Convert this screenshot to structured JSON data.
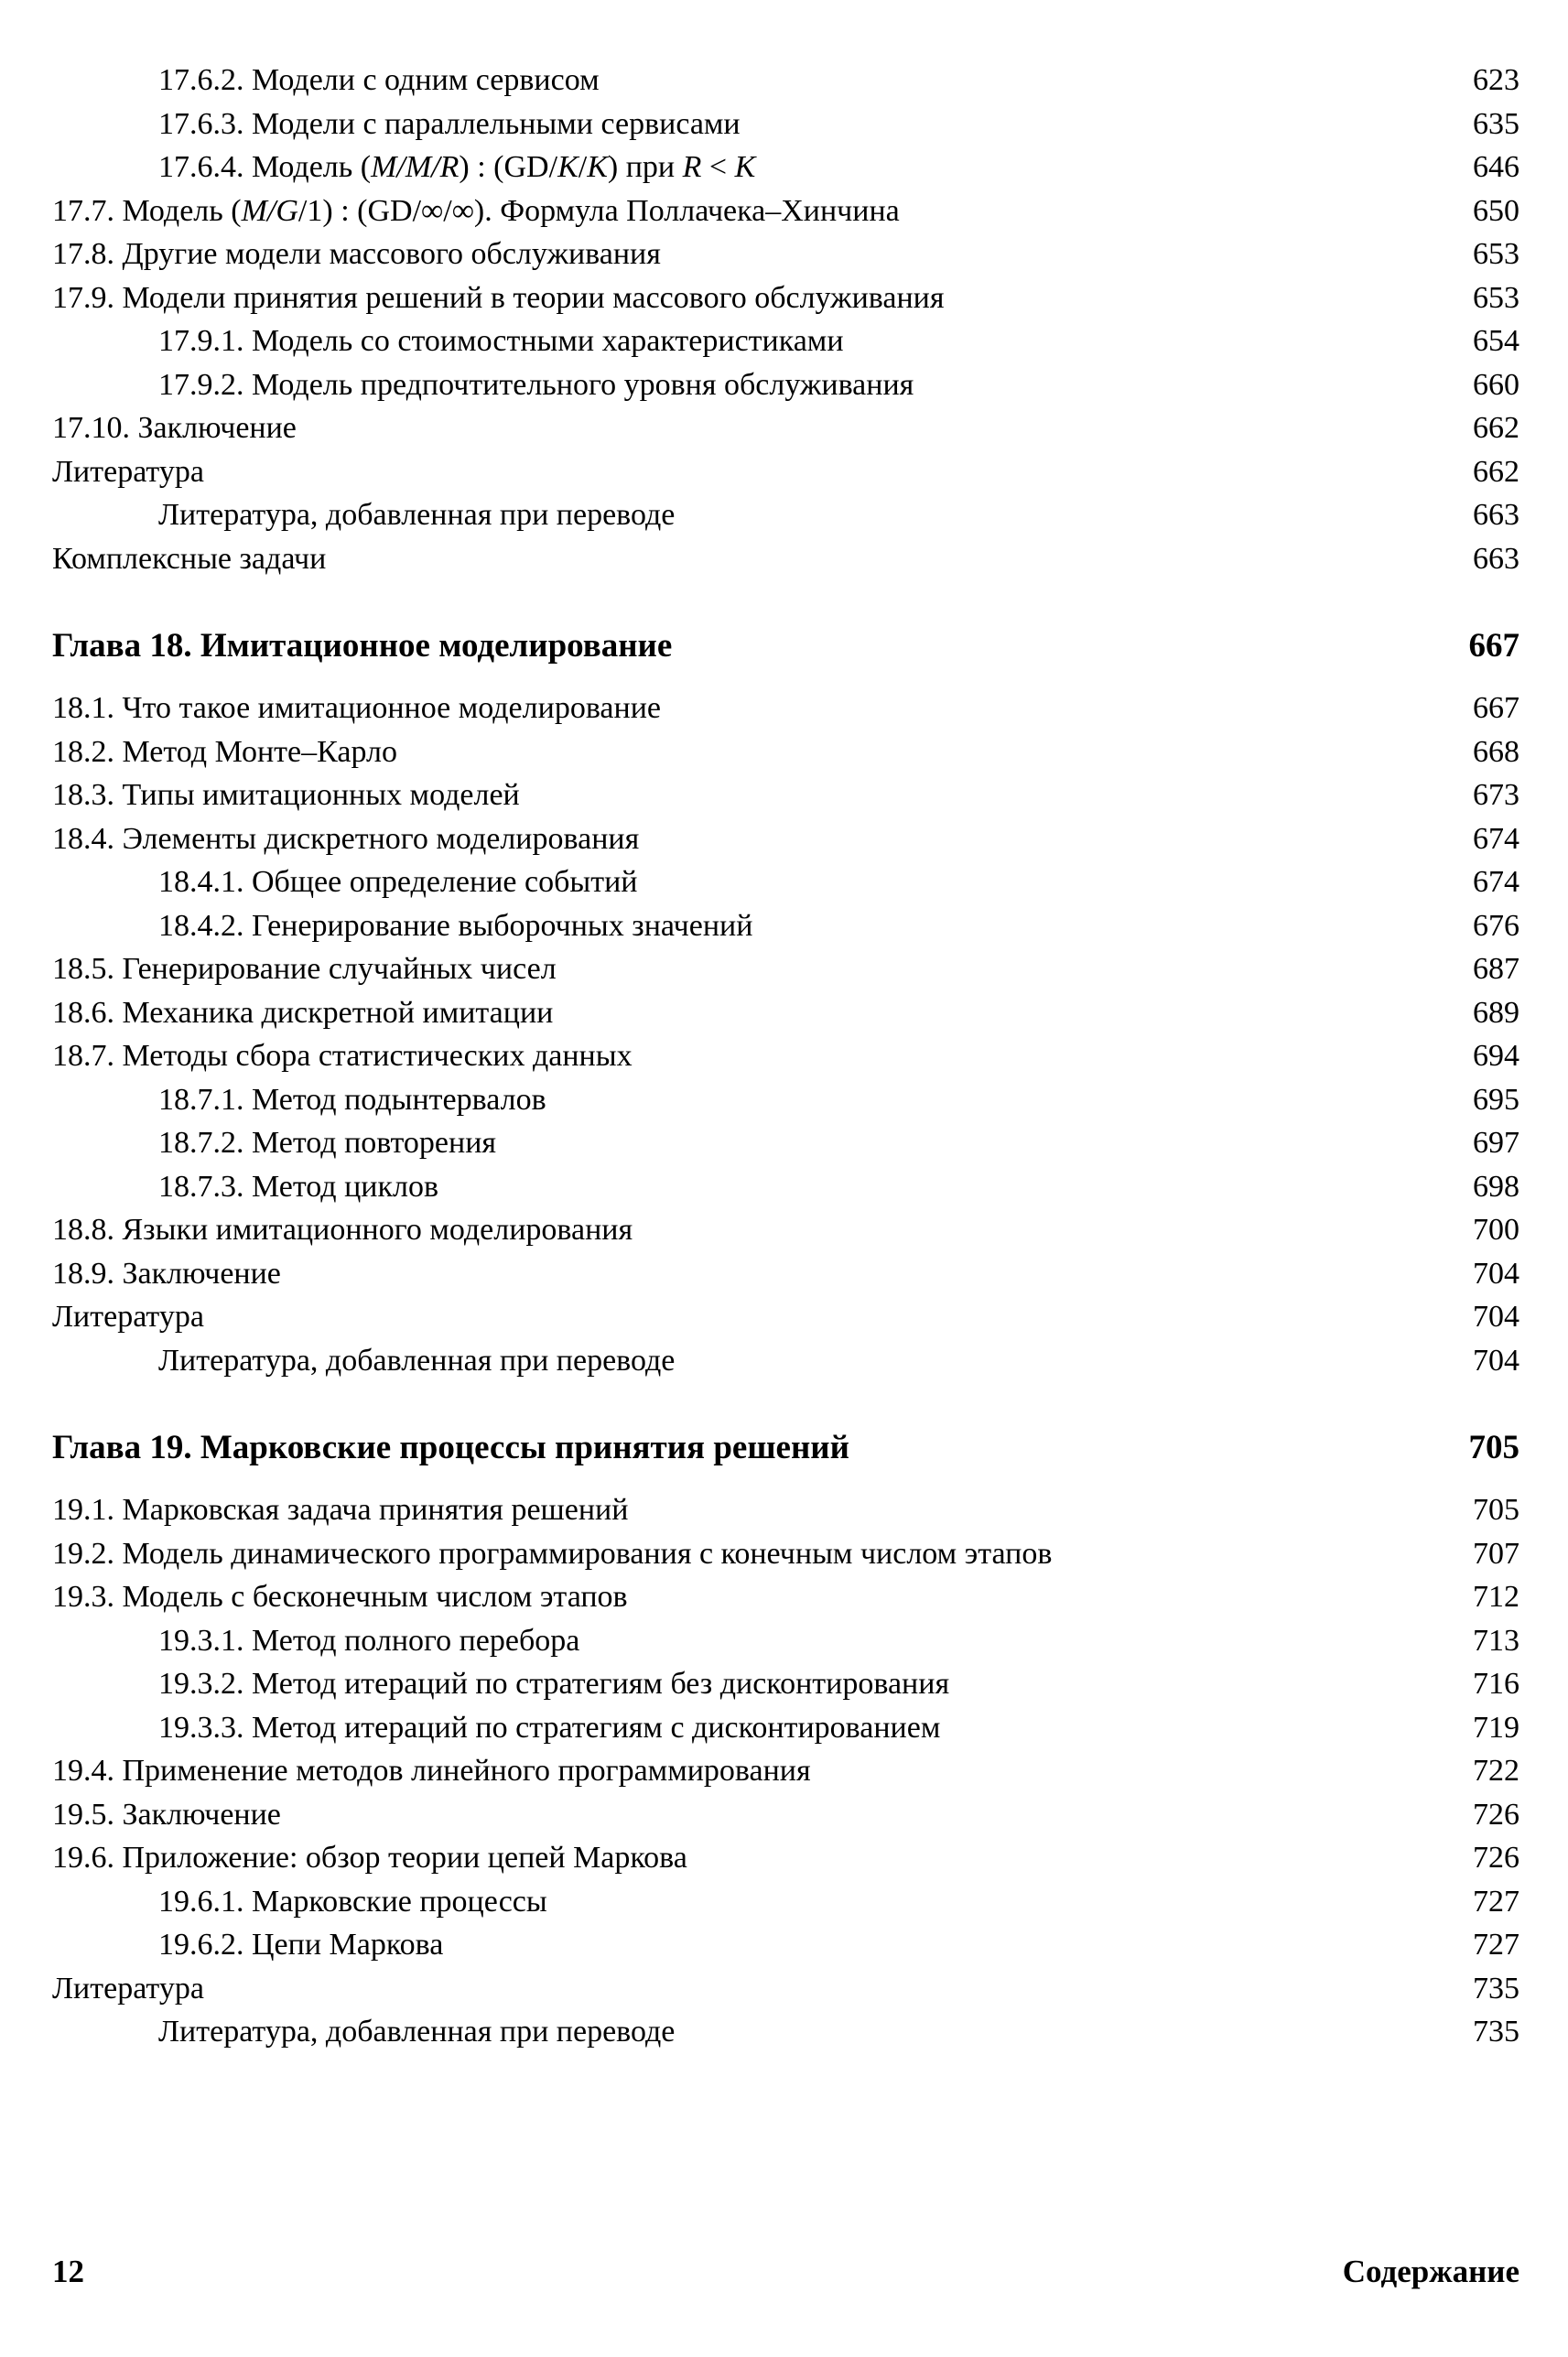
{
  "toc": {
    "entries": [
      {
        "level": 1,
        "runs": [
          {
            "t": "17.6.2. Модели с одним сервисом"
          }
        ],
        "page": "623"
      },
      {
        "level": 1,
        "runs": [
          {
            "t": "17.6.3. Модели с параллельными сервисами"
          }
        ],
        "page": "635"
      },
      {
        "level": 1,
        "runs": [
          {
            "t": "17.6.4. Модель ("
          },
          {
            "t": "M/M/R",
            "i": true
          },
          {
            "t": ") : (GD/"
          },
          {
            "t": "K",
            "i": true
          },
          {
            "t": "/"
          },
          {
            "t": "K",
            "i": true
          },
          {
            "t": ") при "
          },
          {
            "t": "R",
            "i": true
          },
          {
            "t": " < "
          },
          {
            "t": "K",
            "i": true
          }
        ],
        "page": "646"
      },
      {
        "level": 0,
        "runs": [
          {
            "t": "17.7. Модель ("
          },
          {
            "t": "M/G",
            "i": true
          },
          {
            "t": "/1) : (GD/∞/∞). Формула Поллачека–Хинчина"
          }
        ],
        "page": "650"
      },
      {
        "level": 0,
        "runs": [
          {
            "t": "17.8. Другие модели массового обслуживания"
          }
        ],
        "page": "653"
      },
      {
        "level": 0,
        "runs": [
          {
            "t": "17.9. Модели принятия решений в теории массового обслуживания"
          }
        ],
        "page": "653"
      },
      {
        "level": 1,
        "runs": [
          {
            "t": "17.9.1. Модель со стоимостными характеристиками"
          }
        ],
        "page": "654"
      },
      {
        "level": 1,
        "runs": [
          {
            "t": "17.9.2. Модель предпочтительного уровня обслуживания"
          }
        ],
        "page": "660"
      },
      {
        "level": 0,
        "runs": [
          {
            "t": "17.10. Заключение"
          }
        ],
        "page": "662"
      },
      {
        "level": 0,
        "runs": [
          {
            "t": "Литература"
          }
        ],
        "page": "662"
      },
      {
        "level": 1,
        "runs": [
          {
            "t": "Литература, добавленная при переводе"
          }
        ],
        "page": "663"
      },
      {
        "level": 0,
        "runs": [
          {
            "t": "Комплексные задачи"
          }
        ],
        "page": "663"
      },
      {
        "level": 0,
        "heading": true,
        "runs": [
          {
            "t": "Глава 18. Имитационное моделирование"
          }
        ],
        "page": "667"
      },
      {
        "level": 0,
        "runs": [
          {
            "t": "18.1. Что такое имитационное моделирование"
          }
        ],
        "page": "667"
      },
      {
        "level": 0,
        "runs": [
          {
            "t": "18.2. Метод Монте–Карло"
          }
        ],
        "page": "668"
      },
      {
        "level": 0,
        "runs": [
          {
            "t": "18.3. Типы имитационных моделей"
          }
        ],
        "page": "673"
      },
      {
        "level": 0,
        "runs": [
          {
            "t": "18.4. Элементы дискретного моделирования"
          }
        ],
        "page": "674"
      },
      {
        "level": 1,
        "runs": [
          {
            "t": "18.4.1. Общее определение событий"
          }
        ],
        "page": "674"
      },
      {
        "level": 1,
        "runs": [
          {
            "t": "18.4.2. Генерирование выборочных значений"
          }
        ],
        "page": "676"
      },
      {
        "level": 0,
        "runs": [
          {
            "t": "18.5. Генерирование случайных чисел"
          }
        ],
        "page": "687"
      },
      {
        "level": 0,
        "runs": [
          {
            "t": "18.6. Механика дискретной имитации"
          }
        ],
        "page": "689"
      },
      {
        "level": 0,
        "runs": [
          {
            "t": "18.7. Методы сбора статистических данных"
          }
        ],
        "page": "694"
      },
      {
        "level": 1,
        "runs": [
          {
            "t": "18.7.1. Метод подынтервалов"
          }
        ],
        "page": "695"
      },
      {
        "level": 1,
        "runs": [
          {
            "t": "18.7.2. Метод повторения"
          }
        ],
        "page": "697"
      },
      {
        "level": 1,
        "runs": [
          {
            "t": "18.7.3. Метод циклов"
          }
        ],
        "page": "698"
      },
      {
        "level": 0,
        "runs": [
          {
            "t": "18.8. Языки имитационного моделирования"
          }
        ],
        "page": "700"
      },
      {
        "level": 0,
        "runs": [
          {
            "t": "18.9. Заключение"
          }
        ],
        "page": "704"
      },
      {
        "level": 0,
        "runs": [
          {
            "t": "Литература"
          }
        ],
        "page": "704"
      },
      {
        "level": 1,
        "runs": [
          {
            "t": "Литература, добавленная при переводе"
          }
        ],
        "page": "704"
      },
      {
        "level": 0,
        "heading": true,
        "runs": [
          {
            "t": "Глава 19. Марковские процессы принятия решений"
          }
        ],
        "page": "705"
      },
      {
        "level": 0,
        "runs": [
          {
            "t": "19.1. Марковская задача принятия решений"
          }
        ],
        "page": "705"
      },
      {
        "level": 0,
        "runs": [
          {
            "t": "19.2. Модель динамического программирования с конечным числом этапов"
          }
        ],
        "page": "707"
      },
      {
        "level": 0,
        "runs": [
          {
            "t": "19.3. Модель с бесконечным числом этапов"
          }
        ],
        "page": "712"
      },
      {
        "level": 1,
        "runs": [
          {
            "t": "19.3.1. Метод полного перебора"
          }
        ],
        "page": "713"
      },
      {
        "level": 1,
        "runs": [
          {
            "t": "19.3.2. Метод итераций по стратегиям без дисконтирования"
          }
        ],
        "page": "716"
      },
      {
        "level": 1,
        "runs": [
          {
            "t": "19.3.3. Метод итераций по стратегиям с дисконтированием"
          }
        ],
        "page": "719"
      },
      {
        "level": 0,
        "runs": [
          {
            "t": "19.4. Применение методов линейного программирования"
          }
        ],
        "page": "722"
      },
      {
        "level": 0,
        "runs": [
          {
            "t": "19.5. Заключение"
          }
        ],
        "page": "726"
      },
      {
        "level": 0,
        "runs": [
          {
            "t": "19.6. Приложение: обзор теории цепей Маркова"
          }
        ],
        "page": "726"
      },
      {
        "level": 1,
        "runs": [
          {
            "t": "19.6.1. Марковские процессы"
          }
        ],
        "page": "727"
      },
      {
        "level": 1,
        "runs": [
          {
            "t": "19.6.2. Цепи Маркова"
          }
        ],
        "page": "727"
      },
      {
        "level": 0,
        "runs": [
          {
            "t": "Литература"
          }
        ],
        "page": "735"
      },
      {
        "level": 1,
        "runs": [
          {
            "t": "Литература, добавленная при переводе"
          }
        ],
        "page": "735"
      }
    ]
  },
  "footer": {
    "page_number": "12",
    "section_title": "Содержание"
  }
}
